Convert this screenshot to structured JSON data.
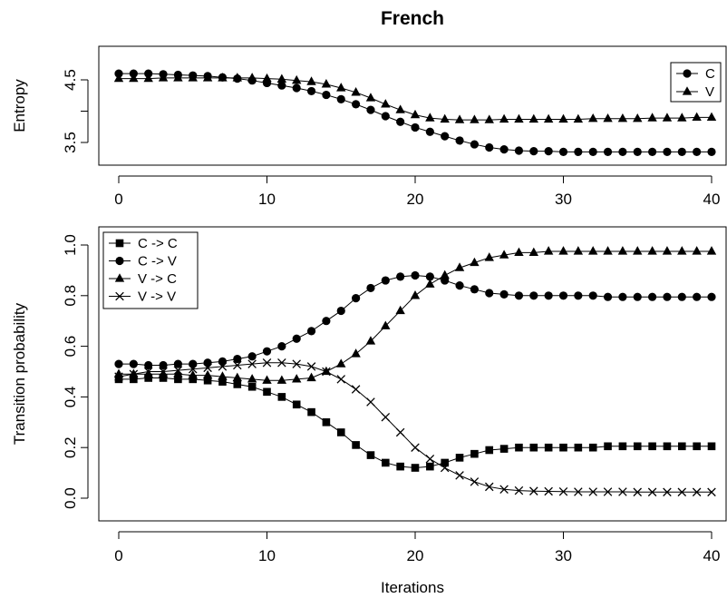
{
  "chart_data": [
    {
      "type": "line",
      "title": "French",
      "xlabel": "",
      "ylabel": "Entropy",
      "xlim": [
        0,
        40
      ],
      "ylim": [
        3.3,
        4.85
      ],
      "xticks": [
        0,
        10,
        20,
        30,
        40
      ],
      "yticks": [
        3.5,
        4.0,
        4.5
      ],
      "ytick_labels": [
        "3.5",
        "",
        "4.5"
      ],
      "legend_position": "top-right",
      "x": [
        0,
        1,
        2,
        3,
        4,
        5,
        6,
        7,
        8,
        9,
        10,
        11,
        12,
        13,
        14,
        15,
        16,
        17,
        18,
        19,
        20,
        21,
        22,
        23,
        24,
        25,
        26,
        27,
        28,
        29,
        30,
        31,
        32,
        33,
        34,
        35,
        36,
        37,
        38,
        39,
        40
      ],
      "series": [
        {
          "name": "C",
          "marker": "circle",
          "values": [
            4.6,
            4.6,
            4.6,
            4.59,
            4.58,
            4.57,
            4.56,
            4.54,
            4.52,
            4.49,
            4.45,
            4.41,
            4.37,
            4.32,
            4.26,
            4.19,
            4.11,
            4.02,
            3.92,
            3.83,
            3.74,
            3.67,
            3.6,
            3.53,
            3.47,
            3.42,
            3.39,
            3.37,
            3.36,
            3.36,
            3.35,
            3.35,
            3.35,
            3.35,
            3.35,
            3.35,
            3.35,
            3.35,
            3.35,
            3.35,
            3.35
          ]
        },
        {
          "name": "V",
          "marker": "triangle",
          "values": [
            4.52,
            4.52,
            4.52,
            4.53,
            4.53,
            4.53,
            4.53,
            4.53,
            4.53,
            4.53,
            4.52,
            4.51,
            4.49,
            4.47,
            4.43,
            4.37,
            4.3,
            4.21,
            4.11,
            4.02,
            3.94,
            3.89,
            3.87,
            3.86,
            3.86,
            3.86,
            3.87,
            3.87,
            3.87,
            3.87,
            3.87,
            3.87,
            3.88,
            3.88,
            3.88,
            3.88,
            3.89,
            3.89,
            3.89,
            3.9,
            3.9
          ]
        }
      ]
    },
    {
      "type": "line",
      "title": "",
      "xlabel": "Iterations",
      "ylabel": "Transition probability",
      "xlim": [
        0,
        40
      ],
      "ylim": [
        0,
        1
      ],
      "xticks": [
        0,
        10,
        20,
        30,
        40
      ],
      "yticks": [
        0.0,
        0.2,
        0.4,
        0.6,
        0.8,
        1.0
      ],
      "ytick_labels": [
        "0.0",
        "0.2",
        "0.4",
        "0.6",
        "0.8",
        "1.0"
      ],
      "legend_position": "top-left",
      "x": [
        0,
        1,
        2,
        3,
        4,
        5,
        6,
        7,
        8,
        9,
        10,
        11,
        12,
        13,
        14,
        15,
        16,
        17,
        18,
        19,
        20,
        21,
        22,
        23,
        24,
        25,
        26,
        27,
        28,
        29,
        30,
        31,
        32,
        33,
        34,
        35,
        36,
        37,
        38,
        39,
        40
      ],
      "series": [
        {
          "name": "C -> C",
          "marker": "square",
          "values": [
            0.47,
            0.47,
            0.475,
            0.475,
            0.47,
            0.47,
            0.465,
            0.46,
            0.45,
            0.44,
            0.42,
            0.4,
            0.37,
            0.34,
            0.3,
            0.26,
            0.21,
            0.17,
            0.14,
            0.125,
            0.12,
            0.125,
            0.14,
            0.16,
            0.175,
            0.19,
            0.195,
            0.2,
            0.2,
            0.2,
            0.2,
            0.2,
            0.2,
            0.205,
            0.205,
            0.205,
            0.205,
            0.205,
            0.205,
            0.205,
            0.205
          ]
        },
        {
          "name": "C -> V",
          "marker": "circle",
          "values": [
            0.53,
            0.53,
            0.525,
            0.525,
            0.53,
            0.53,
            0.535,
            0.54,
            0.55,
            0.56,
            0.58,
            0.6,
            0.63,
            0.66,
            0.7,
            0.74,
            0.79,
            0.83,
            0.86,
            0.875,
            0.88,
            0.875,
            0.86,
            0.84,
            0.825,
            0.81,
            0.805,
            0.8,
            0.8,
            0.8,
            0.8,
            0.8,
            0.8,
            0.795,
            0.795,
            0.795,
            0.795,
            0.795,
            0.795,
            0.795,
            0.795
          ]
        },
        {
          "name": "V -> C",
          "marker": "triangle",
          "values": [
            0.49,
            0.49,
            0.49,
            0.49,
            0.49,
            0.485,
            0.485,
            0.48,
            0.475,
            0.47,
            0.465,
            0.465,
            0.47,
            0.475,
            0.5,
            0.53,
            0.57,
            0.62,
            0.68,
            0.74,
            0.8,
            0.845,
            0.88,
            0.91,
            0.93,
            0.95,
            0.96,
            0.97,
            0.97,
            0.975,
            0.975,
            0.975,
            0.975,
            0.975,
            0.975,
            0.975,
            0.975,
            0.975,
            0.975,
            0.975,
            0.975
          ]
        },
        {
          "name": "V -> V",
          "marker": "cross",
          "values": [
            0.48,
            0.49,
            0.5,
            0.5,
            0.505,
            0.51,
            0.515,
            0.52,
            0.525,
            0.53,
            0.535,
            0.535,
            0.53,
            0.52,
            0.5,
            0.47,
            0.43,
            0.38,
            0.32,
            0.26,
            0.2,
            0.155,
            0.12,
            0.09,
            0.065,
            0.045,
            0.035,
            0.03,
            0.028,
            0.027,
            0.026,
            0.025,
            0.025,
            0.025,
            0.025,
            0.024,
            0.024,
            0.024,
            0.024,
            0.024,
            0.024
          ]
        }
      ]
    }
  ]
}
